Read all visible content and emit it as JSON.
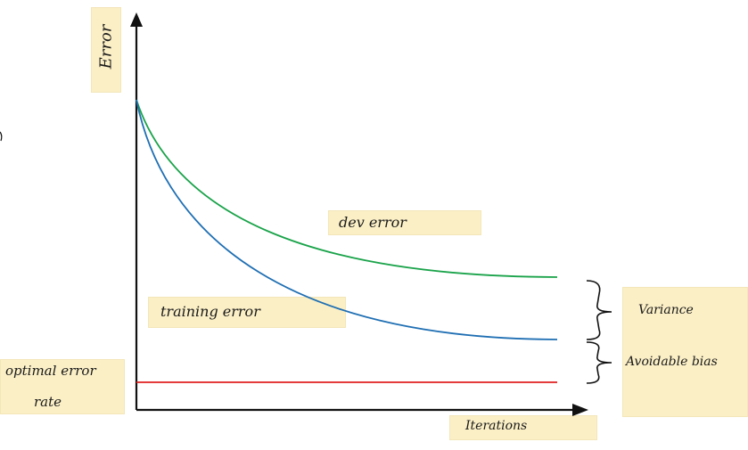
{
  "labels": {
    "y_axis": "Error",
    "x_axis": "Iterations",
    "dev_error": "dev error",
    "training_error": "training error",
    "optimal_line1": "optimal error",
    "optimal_line2": "rate",
    "variance": "Variance",
    "avoidable_bias": "Avoidable bias"
  },
  "colors": {
    "dev_curve": "#1aa34a",
    "training_curve": "#1f6fb3",
    "optimal_line": "#e02020",
    "ink": "#111111",
    "note": "#fbefc6"
  }
}
